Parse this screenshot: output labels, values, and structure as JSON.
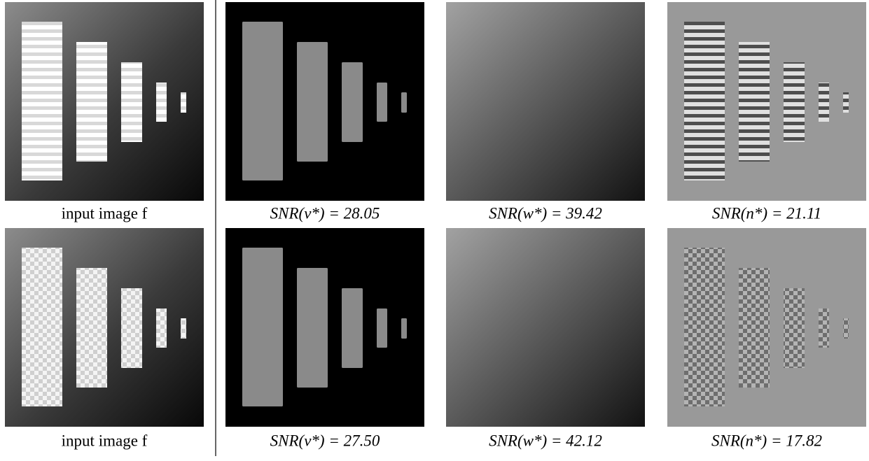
{
  "rows": [
    {
      "captions": [
        "input image f",
        "SNR(v*) = 28.05",
        "SNR(w*) = 39.42",
        "SNR(n*) = 21.11"
      ]
    },
    {
      "captions": [
        "input image f",
        "SNR(v*) = 27.50",
        "SNR(w*) = 42.12",
        "SNR(n*) = 17.82"
      ]
    }
  ]
}
